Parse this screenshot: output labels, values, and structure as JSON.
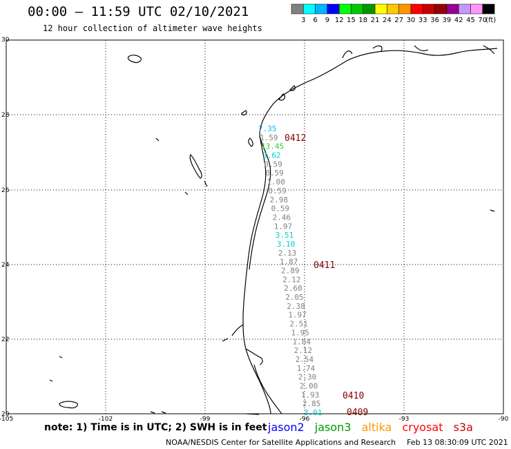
{
  "title": "00:00 – 11:59 UTC 02/10/2021",
  "subtitle": "12 hour collection of altimeter wave heights",
  "note": "note:  1) Time is in UTC;  2) SWH is in feet",
  "credit": "NOAA/NESDIS Center for Satellite Applications and Research",
  "timestamp": "Feb 13 08:30:09 UTC 2021",
  "colorbar": {
    "labels": [
      "3",
      "6",
      "9",
      "12",
      "15",
      "18",
      "21",
      "24",
      "27",
      "30",
      "33",
      "36",
      "39",
      "42",
      "45",
      "70"
    ],
    "unit": "(ft)",
    "colors": [
      "#808080",
      "#00ffff",
      "#00b4ff",
      "#0000ff",
      "#00ff00",
      "#00c800",
      "#009600",
      "#ffff00",
      "#ffc800",
      "#ff9600",
      "#ff0000",
      "#c80000",
      "#960000",
      "#960096",
      "#c896ff",
      "#ff96ff",
      "#000000"
    ]
  },
  "axes": {
    "lon_labels": [
      "-105",
      "-102",
      "-99",
      "-96",
      "-93",
      "-90"
    ],
    "lat_labels": [
      "30",
      "28",
      "26",
      "24",
      "22",
      "20"
    ]
  },
  "satellites": [
    {
      "name": "jason2",
      "color": "#0000ff"
    },
    {
      "name": "jason3",
      "color": "#009600"
    },
    {
      "name": "altika",
      "color": "#ff9600"
    },
    {
      "name": "cryosat",
      "color": "#ff0000"
    },
    {
      "name": "s3a",
      "color": "#c80000"
    }
  ],
  "pass_labels": [
    {
      "text": "0412",
      "color": "#800000"
    },
    {
      "text": "0411",
      "color": "#800000"
    },
    {
      "text": "0410",
      "color": "#800000"
    },
    {
      "text": "0409",
      "color": "#800000"
    }
  ],
  "swh_values": [
    {
      "text": "7.35",
      "color": "#00b4ff"
    },
    {
      "text": "1.59",
      "color": "#808080"
    },
    {
      "text": "13.45",
      "color": "#33cc33"
    },
    {
      "text": "3.62",
      "color": "#00cccc"
    },
    {
      "text": "0.59",
      "color": "#808080"
    },
    {
      "text": "0.59",
      "color": "#808080"
    },
    {
      "text": "1.00",
      "color": "#808080"
    },
    {
      "text": "0.59",
      "color": "#808080"
    },
    {
      "text": "2.98",
      "color": "#808080"
    },
    {
      "text": "0.59",
      "color": "#808080"
    },
    {
      "text": "2.46",
      "color": "#808080"
    },
    {
      "text": "1.97",
      "color": "#808080"
    },
    {
      "text": "3.51",
      "color": "#00cccc"
    },
    {
      "text": "3.10",
      "color": "#00cccc"
    },
    {
      "text": "2.13",
      "color": "#808080"
    },
    {
      "text": "1.87",
      "color": "#808080"
    },
    {
      "text": "2.89",
      "color": "#808080"
    },
    {
      "text": "2.12",
      "color": "#808080"
    },
    {
      "text": "2.60",
      "color": "#808080"
    },
    {
      "text": "2.05",
      "color": "#808080"
    },
    {
      "text": "2.38",
      "color": "#808080"
    },
    {
      "text": "1.97",
      "color": "#808080"
    },
    {
      "text": "2.51",
      "color": "#808080"
    },
    {
      "text": "1.95",
      "color": "#808080"
    },
    {
      "text": "1.84",
      "color": "#808080"
    },
    {
      "text": "2.12",
      "color": "#808080"
    },
    {
      "text": "2.54",
      "color": "#808080"
    },
    {
      "text": "1.74",
      "color": "#808080"
    },
    {
      "text": "2.30",
      "color": "#808080"
    },
    {
      "text": "2.00",
      "color": "#808080"
    },
    {
      "text": "1.93",
      "color": "#808080"
    },
    {
      "text": "2.85",
      "color": "#808080"
    },
    {
      "text": "3.01",
      "color": "#00cccc"
    }
  ]
}
